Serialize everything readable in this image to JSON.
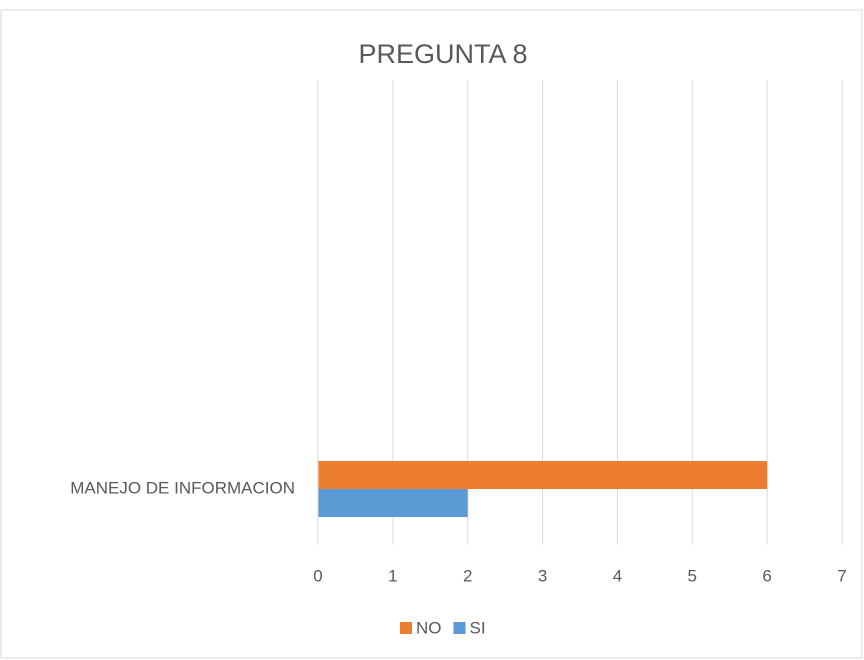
{
  "chart_data": {
    "type": "hbar",
    "title": "PREGUNTA 8",
    "categories": [
      "MANEJO DE INFORMACION"
    ],
    "series": [
      {
        "name": "NO",
        "color": "#ed7d31",
        "values": [
          6
        ]
      },
      {
        "name": "SI",
        "color": "#5b9bd5",
        "values": [
          2
        ]
      }
    ],
    "xlim": [
      0,
      7
    ],
    "xticks": [
      0,
      1,
      2,
      3,
      4,
      5,
      6,
      7
    ],
    "grid": true,
    "legend": "bottom"
  }
}
